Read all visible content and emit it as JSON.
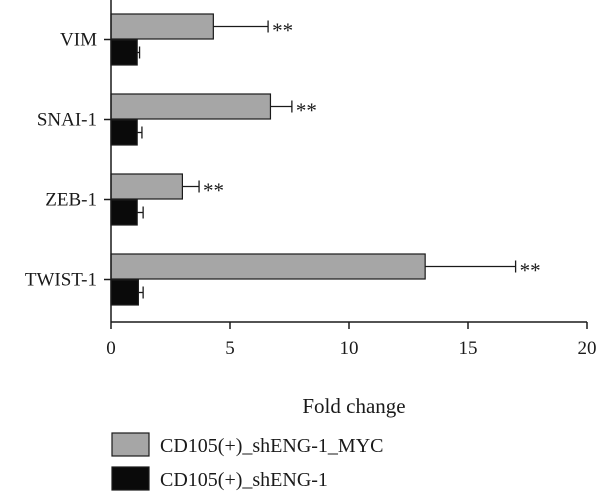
{
  "chart_data": {
    "type": "bar",
    "orientation": "horizontal",
    "categories": [
      "VIM",
      "SNAI-1",
      "ZEB-1",
      "TWIST-1"
    ],
    "series": [
      {
        "name": "CD105(+)_shENG-1_MYC",
        "color": "#a6a6a6",
        "values": [
          4.3,
          6.7,
          3.0,
          13.2
        ],
        "errors": [
          2.3,
          0.9,
          0.7,
          3.8
        ],
        "annotations": [
          "**",
          "**",
          "**",
          "**"
        ]
      },
      {
        "name": "CD105(+)_shENG-1",
        "color": "#0a0a0a",
        "values": [
          1.1,
          1.1,
          1.1,
          1.15
        ],
        "errors": [
          0.1,
          0.2,
          0.25,
          0.2
        ],
        "annotations": [
          "",
          "",
          "",
          ""
        ]
      }
    ],
    "xlabel": "Fold change",
    "ylabel": "",
    "xlim": [
      0,
      20
    ],
    "xticks": [
      0,
      5,
      10,
      15,
      20
    ],
    "grid": false,
    "legend_position": "bottom-left"
  }
}
